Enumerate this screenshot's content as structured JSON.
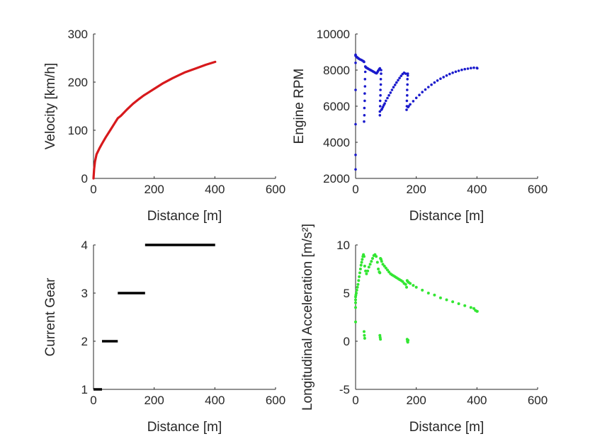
{
  "chart_data": [
    {
      "type": "line",
      "xlabel": "Distance [m]",
      "ylabel": "Velocity [km/h]",
      "xlim": [
        0,
        600
      ],
      "ylim": [
        0,
        300
      ],
      "xticks": [
        0,
        200,
        400,
        600
      ],
      "yticks": [
        0,
        100,
        200,
        300
      ],
      "xtick_labels": [
        "0",
        "200",
        "400",
        "600"
      ],
      "ytick_labels": [
        "0",
        "100",
        "200",
        "300"
      ],
      "grid": false,
      "color": "#d7191c",
      "series": [
        {
          "x": [
            0,
            2,
            5,
            10,
            20,
            28,
            40,
            55,
            70,
            80,
            90,
            110,
            130,
            150,
            165,
            175,
            200,
            230,
            260,
            300,
            340,
            370,
            401
          ],
          "y": [
            0,
            20,
            35,
            50,
            63,
            72,
            85,
            100,
            115,
            125,
            130,
            143,
            155,
            165,
            172,
            176,
            186,
            198,
            208,
            220,
            229,
            236,
            242
          ]
        }
      ]
    },
    {
      "type": "scatter",
      "xlabel": "Distance [m]",
      "ylabel": "Engine RPM",
      "xlim": [
        0,
        600
      ],
      "ylim": [
        2000,
        10000
      ],
      "xticks": [
        0,
        200,
        400,
        600
      ],
      "yticks": [
        2000,
        4000,
        6000,
        8000,
        10000
      ],
      "xtick_labels": [
        "0",
        "200",
        "400",
        "600"
      ],
      "ytick_labels": [
        "2000",
        "4000",
        "6000",
        "8000",
        "10000"
      ],
      "grid": false,
      "color": "#1a1acc",
      "series": [
        {
          "x": [
            0,
            0,
            0,
            0,
            0,
            0,
            0,
            0,
            2,
            4,
            6,
            8,
            10,
            12,
            15,
            18,
            21,
            24,
            27,
            28,
            28,
            29,
            29,
            30,
            30,
            31,
            31,
            32,
            32,
            33,
            34,
            36,
            38,
            40,
            42,
            45,
            48,
            51,
            54,
            57,
            60,
            63,
            66,
            69,
            72,
            74,
            76,
            78,
            80,
            80,
            80,
            81,
            81,
            82,
            82,
            83,
            83,
            84,
            84,
            85,
            87,
            90,
            93,
            96,
            100,
            105,
            110,
            115,
            120,
            125,
            130,
            135,
            140,
            145,
            150,
            155,
            160,
            165,
            168,
            169,
            169,
            170,
            170,
            171,
            171,
            172,
            172,
            173,
            175,
            180,
            190,
            200,
            210,
            220,
            230,
            240,
            250,
            260,
            270,
            280,
            290,
            300,
            310,
            320,
            330,
            340,
            350,
            360,
            370,
            380,
            390,
            400,
            401
          ],
          "y": [
            2500,
            3300,
            5000,
            6900,
            8400,
            8800,
            8850,
            8800,
            8750,
            8720,
            8690,
            8670,
            8640,
            8620,
            8590,
            8570,
            8540,
            8510,
            8480,
            8450,
            5150,
            5500,
            5900,
            6300,
            6700,
            7100,
            7500,
            7900,
            8200,
            8180,
            8150,
            8130,
            8110,
            8090,
            8070,
            8040,
            8010,
            7990,
            7960,
            7930,
            7900,
            7870,
            7840,
            7820,
            7880,
            7950,
            8000,
            8050,
            8100,
            5500,
            5700,
            6000,
            6300,
            6600,
            6900,
            7200,
            7500,
            7800,
            8000,
            5800,
            5850,
            5950,
            6050,
            6150,
            6300,
            6450,
            6600,
            6750,
            6900,
            7050,
            7180,
            7310,
            7440,
            7560,
            7680,
            7780,
            7850,
            7800,
            5800,
            6000,
            6300,
            6600,
            6900,
            7200,
            7500,
            7700,
            7800,
            5950,
            6000,
            6100,
            6280,
            6460,
            6620,
            6780,
            6920,
            7060,
            7190,
            7310,
            7420,
            7520,
            7610,
            7700,
            7780,
            7850,
            7910,
            7960,
            8010,
            8050,
            8080,
            8110,
            8130,
            8120,
            8100
          ]
        }
      ]
    },
    {
      "type": "line",
      "xlabel": "Distance [m]",
      "ylabel": "Current Gear",
      "xlim": [
        0,
        600
      ],
      "ylim": [
        1,
        4
      ],
      "xticks": [
        0,
        200,
        400,
        600
      ],
      "yticks": [
        1,
        2,
        3,
        4
      ],
      "xtick_labels": [
        "0",
        "200",
        "400",
        "600"
      ],
      "ytick_labels": [
        "1",
        "2",
        "3",
        "4"
      ],
      "grid": false,
      "color": "#000000",
      "series": [
        {
          "x": [
            0,
            28
          ],
          "y": [
            1,
            1
          ]
        },
        {
          "x": [
            28,
            80
          ],
          "y": [
            2,
            2
          ]
        },
        {
          "x": [
            80,
            170
          ],
          "y": [
            3,
            3
          ]
        },
        {
          "x": [
            170,
            401
          ],
          "y": [
            4,
            4
          ]
        }
      ]
    },
    {
      "type": "scatter",
      "xlabel": "Distance [m]",
      "ylabel": "Longitudinal Acceleration [m/s²]",
      "xlim": [
        0,
        600
      ],
      "ylim": [
        -5,
        10
      ],
      "xticks": [
        0,
        200,
        400,
        600
      ],
      "yticks": [
        -5,
        0,
        5,
        10
      ],
      "xtick_labels": [
        "0",
        "200",
        "400",
        "600"
      ],
      "ytick_labels": [
        "-5",
        "0",
        "5",
        "10"
      ],
      "grid": false,
      "color": "#33e633",
      "series": [
        {
          "x": [
            0,
            0,
            0,
            1,
            2,
            4,
            6,
            8,
            10,
            12,
            14,
            16,
            18,
            20,
            22,
            24,
            26,
            28,
            30,
            33,
            36,
            40,
            44,
            48,
            52,
            56,
            60,
            64,
            68,
            72,
            75,
            78,
            80,
            82,
            84,
            86,
            90,
            95,
            100,
            105,
            110,
            115,
            120,
            125,
            130,
            135,
            140,
            145,
            150,
            155,
            160,
            165,
            168,
            170,
            172,
            175,
            180,
            190,
            200,
            220,
            240,
            260,
            280,
            300,
            320,
            340,
            360,
            380,
            390,
            395,
            400,
            401,
            0,
            0,
            28,
            29,
            30,
            80,
            81,
            82,
            170,
            171,
            172,
            173
          ],
          "y": [
            2,
            3.5,
            4.3,
            4.8,
            5.0,
            5.3,
            5.6,
            5.9,
            6.3,
            6.7,
            7.1,
            7.5,
            7.9,
            8.2,
            8.5,
            8.8,
            9.0,
            8.8,
            7.8,
            7.3,
            7.0,
            7.3,
            7.7,
            8.0,
            8.3,
            8.6,
            8.9,
            9.0,
            8.8,
            8.2,
            7.5,
            7.2,
            7.1,
            8.6,
            8.5,
            8.3,
            8.0,
            7.8,
            7.6,
            7.4,
            7.2,
            7.0,
            6.9,
            6.8,
            6.7,
            6.6,
            6.5,
            6.4,
            6.3,
            6.2,
            6.0,
            5.9,
            5.6,
            6.3,
            6.2,
            6.1,
            6.0,
            5.8,
            5.6,
            5.3,
            5.0,
            4.8,
            4.5,
            4.3,
            4.1,
            3.9,
            3.7,
            3.5,
            3.4,
            3.2,
            3.1,
            3.1,
            4.0,
            4.6,
            1.0,
            0.6,
            0.3,
            0.6,
            0.4,
            0.2,
            0.2,
            0.0,
            -0.1,
            0.1
          ]
        }
      ]
    }
  ]
}
